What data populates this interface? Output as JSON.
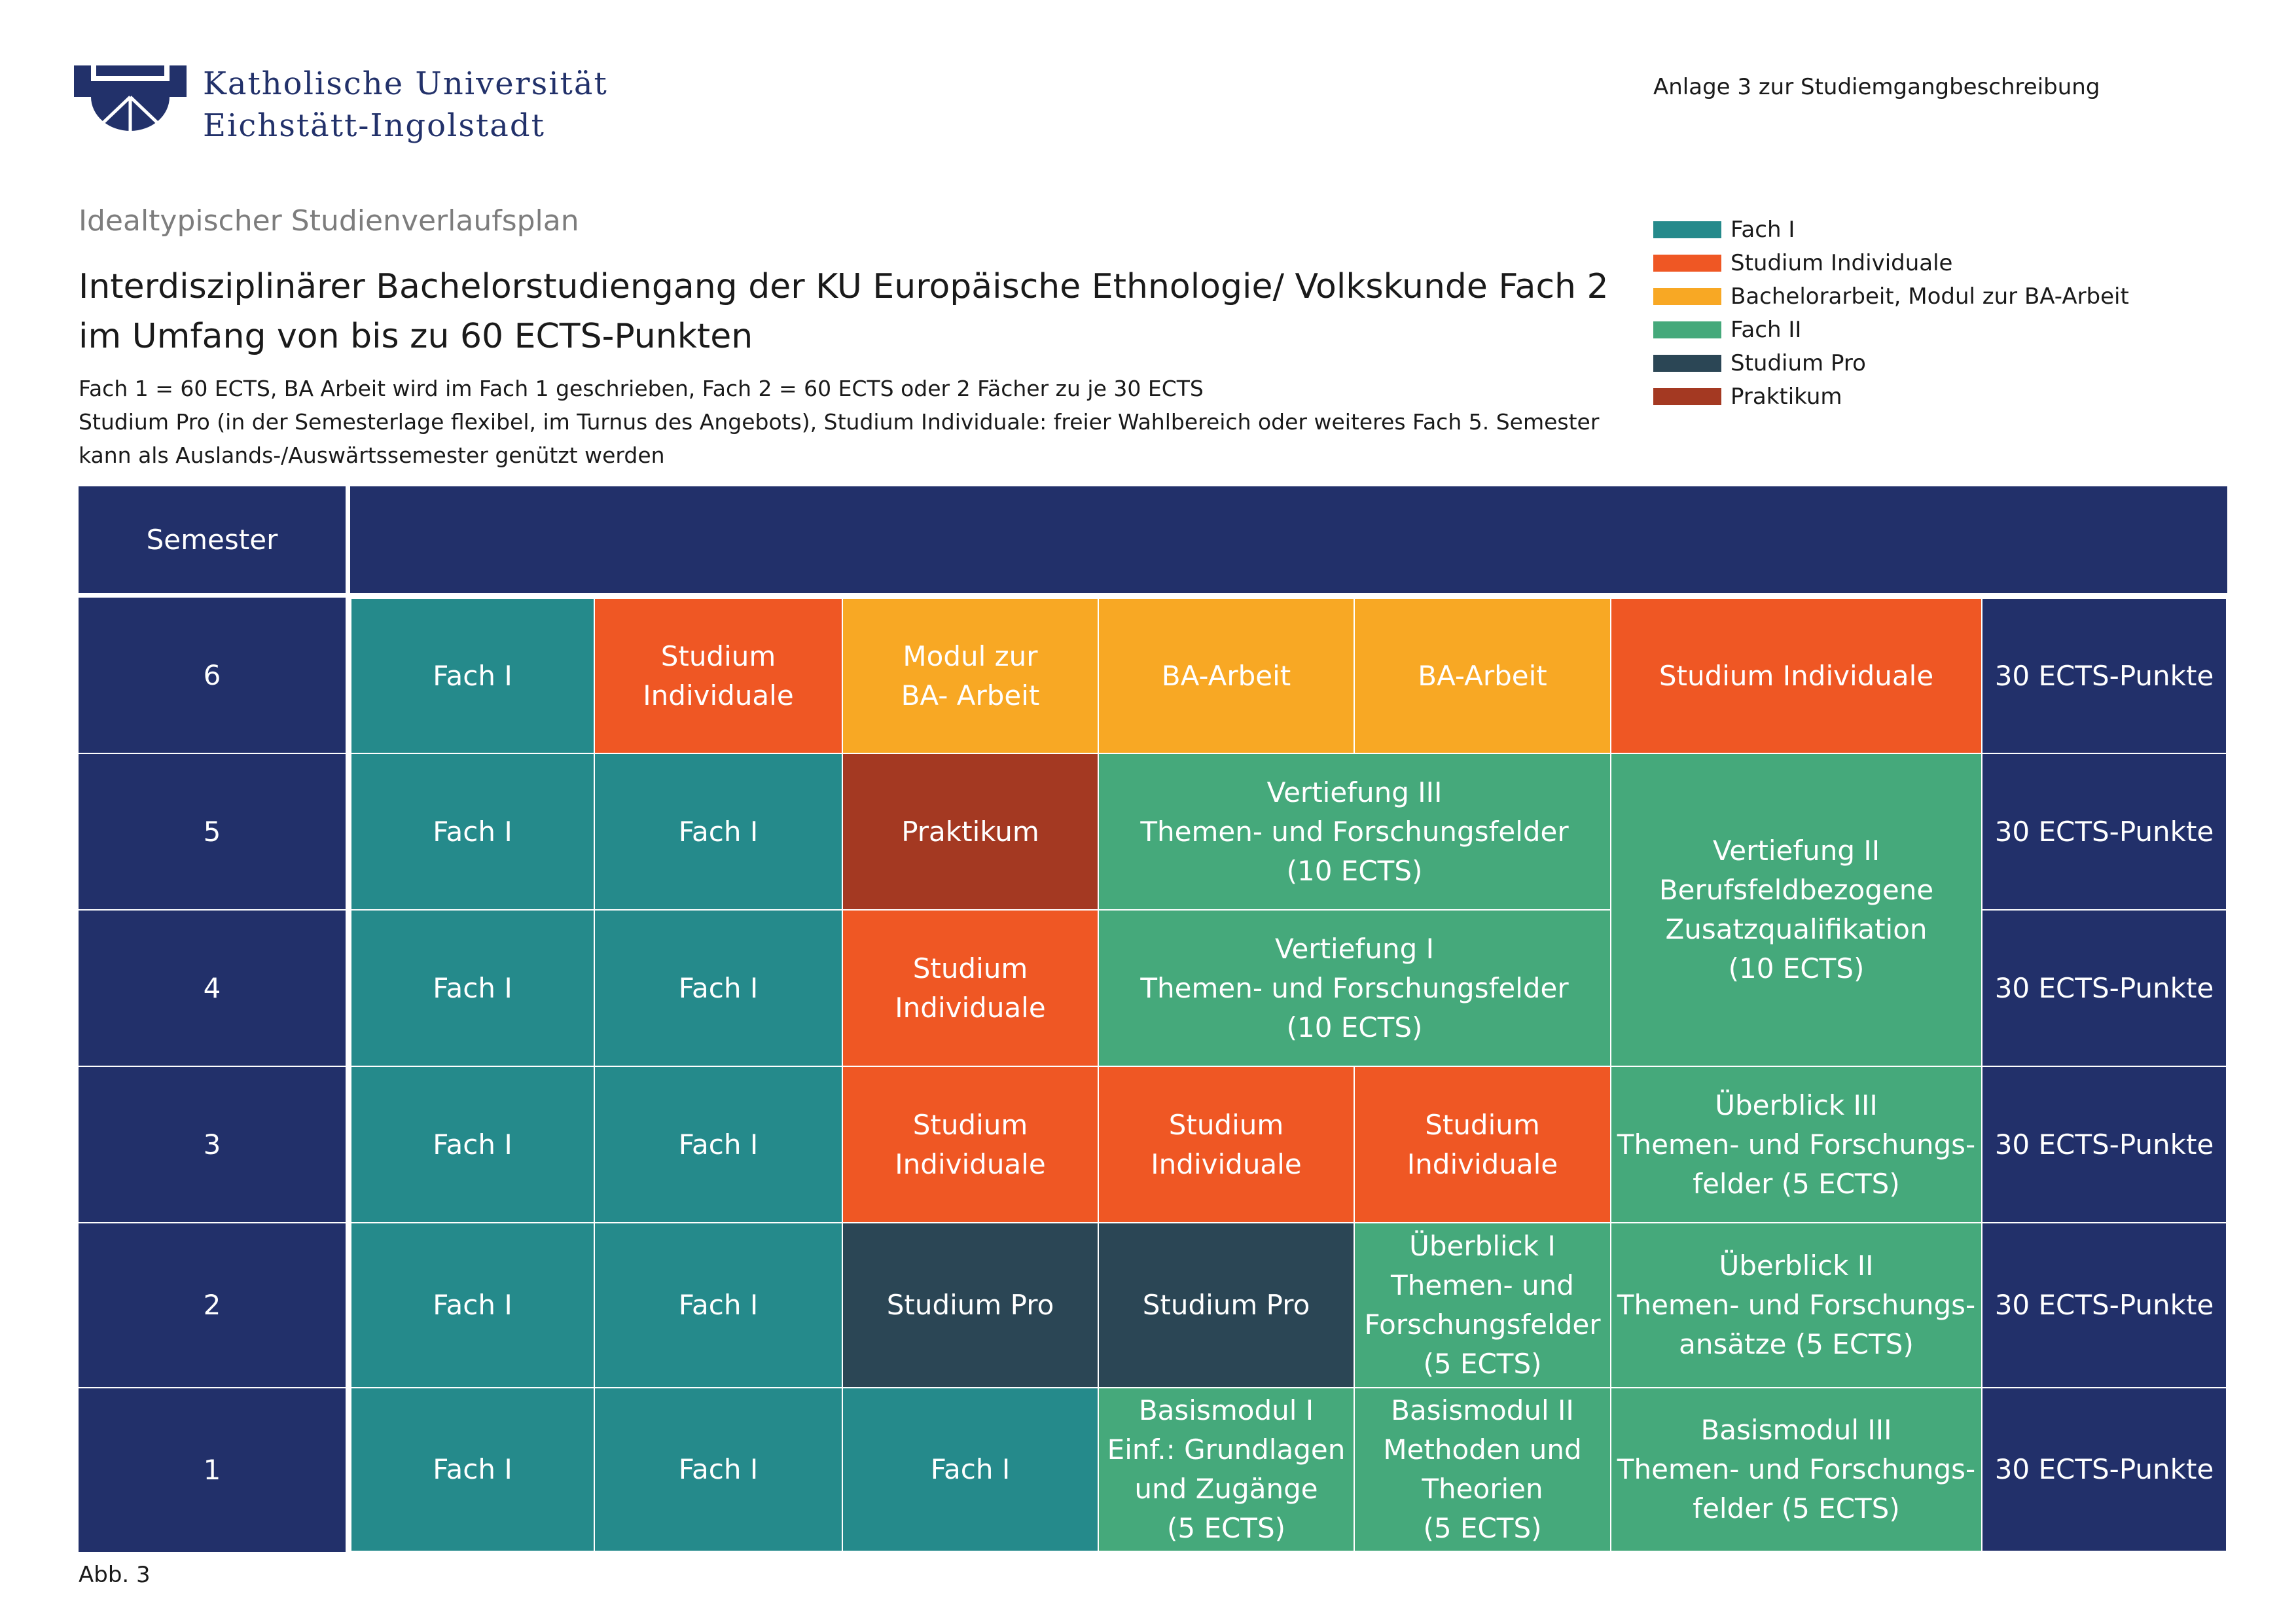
{
  "header": {
    "university_line1": "Katholische Universität",
    "university_line2": "Eichstätt-Ingolstadt",
    "anlage": "Anlage 3 zur Studiemgangbeschreibung"
  },
  "subtitle": "Idealtypischer Studienverlaufsplan",
  "title_line1": "Interdisziplinärer Bachelorstudiengang der KU Europäische Ethnologie/ Volkskunde Fach 2",
  "title_line2": "im Umfang von bis zu 60 ECTS-Punkten",
  "notes": [
    "Fach 1 = 60 ECTS, BA Arbeit wird im Fach 1 geschrieben, Fach 2 = 60 ECTS oder 2 Fächer zu je 30 ECTS",
    "Studium Pro (in der Semesterlage flexibel, im Turnus des Angebots), Studium Individuale: freier Wahlbereich oder weiteres Fach 5. Semester",
    "kann als Auslands-/Auswärtssemester genützt werden"
  ],
  "legend": [
    {
      "label": "Fach I",
      "color": "#258a8b"
    },
    {
      "label": "Studium Individuale",
      "color": "#ef5724"
    },
    {
      "label": "Bachelorarbeit, Modul zur BA-Arbeit",
      "color": "#f8a824"
    },
    {
      "label": "Fach II",
      "color": "#45a97b"
    },
    {
      "label": "Studium Pro",
      "color": "#2b4655"
    },
    {
      "label": "Praktikum",
      "color": "#a43922"
    }
  ],
  "table": {
    "header_semester": "Semester",
    "semesters": [
      "6",
      "5",
      "4",
      "3",
      "2",
      "1"
    ],
    "ects": [
      "30 ECTS-Punkte",
      "30 ECTS-Punkte",
      "30 ECTS-Punkte",
      "30 ECTS-Punkte",
      "30 ECTS-Punkte",
      "30 ECTS-Punkte"
    ],
    "s6": {
      "c1": "Fach I",
      "c2": [
        "Studium",
        "Individuale"
      ],
      "c3": [
        "Modul zur",
        "BA- Arbeit"
      ],
      "c4": "BA-Arbeit",
      "c5": "BA-Arbeit",
      "c6": "Studium Individuale"
    },
    "s5": {
      "c1": "Fach I",
      "c2": "Fach I",
      "c3": "Praktikum",
      "vertiefung3": [
        "Vertiefung III",
        "Themen- und Forschungsfelder",
        "(10 ECTS)"
      ]
    },
    "vertiefung2": [
      "Vertiefung II",
      "Berufsfeldbezogene",
      "Zusatzqualifikation",
      "(10 ECTS)"
    ],
    "s4": {
      "c1": "Fach I",
      "c2": "Fach I",
      "c3": [
        "Studium",
        "Individuale"
      ],
      "vertiefung1": [
        "Vertiefung I",
        "Themen- und Forschungsfelder",
        "(10 ECTS)"
      ]
    },
    "s3": {
      "c1": "Fach I",
      "c2": "Fach I",
      "c3": [
        "Studium",
        "Individuale"
      ],
      "c4": [
        "Studium",
        "Individuale"
      ],
      "c5": [
        "Studium",
        "Individuale"
      ],
      "c6": [
        "Überblick III",
        "Themen- und Forschungs-",
        "felder (5 ECTS)"
      ]
    },
    "s2": {
      "c1": "Fach I",
      "c2": "Fach I",
      "c3": "Studium Pro",
      "c4": "Studium Pro",
      "c5": [
        "Überblick I",
        "Themen- und",
        "Forschungsfelder",
        "(5 ECTS)"
      ],
      "c6": [
        "Überblick II",
        "Themen- und Forschungs-",
        "ansätze (5 ECTS)"
      ]
    },
    "s1": {
      "c1": "Fach I",
      "c2": "Fach I",
      "c3": "Fach I",
      "c4": [
        "Basismodul I",
        "Einf.: Grundlagen",
        "und Zugänge",
        "(5 ECTS)"
      ],
      "c5": [
        "Basismodul II",
        "Methoden und",
        "Theorien",
        "(5 ECTS)"
      ],
      "c6": [
        "Basismodul III",
        "Themen- und Forschungs-",
        "felder (5 ECTS)"
      ]
    }
  },
  "footnote": "Abb. 3"
}
